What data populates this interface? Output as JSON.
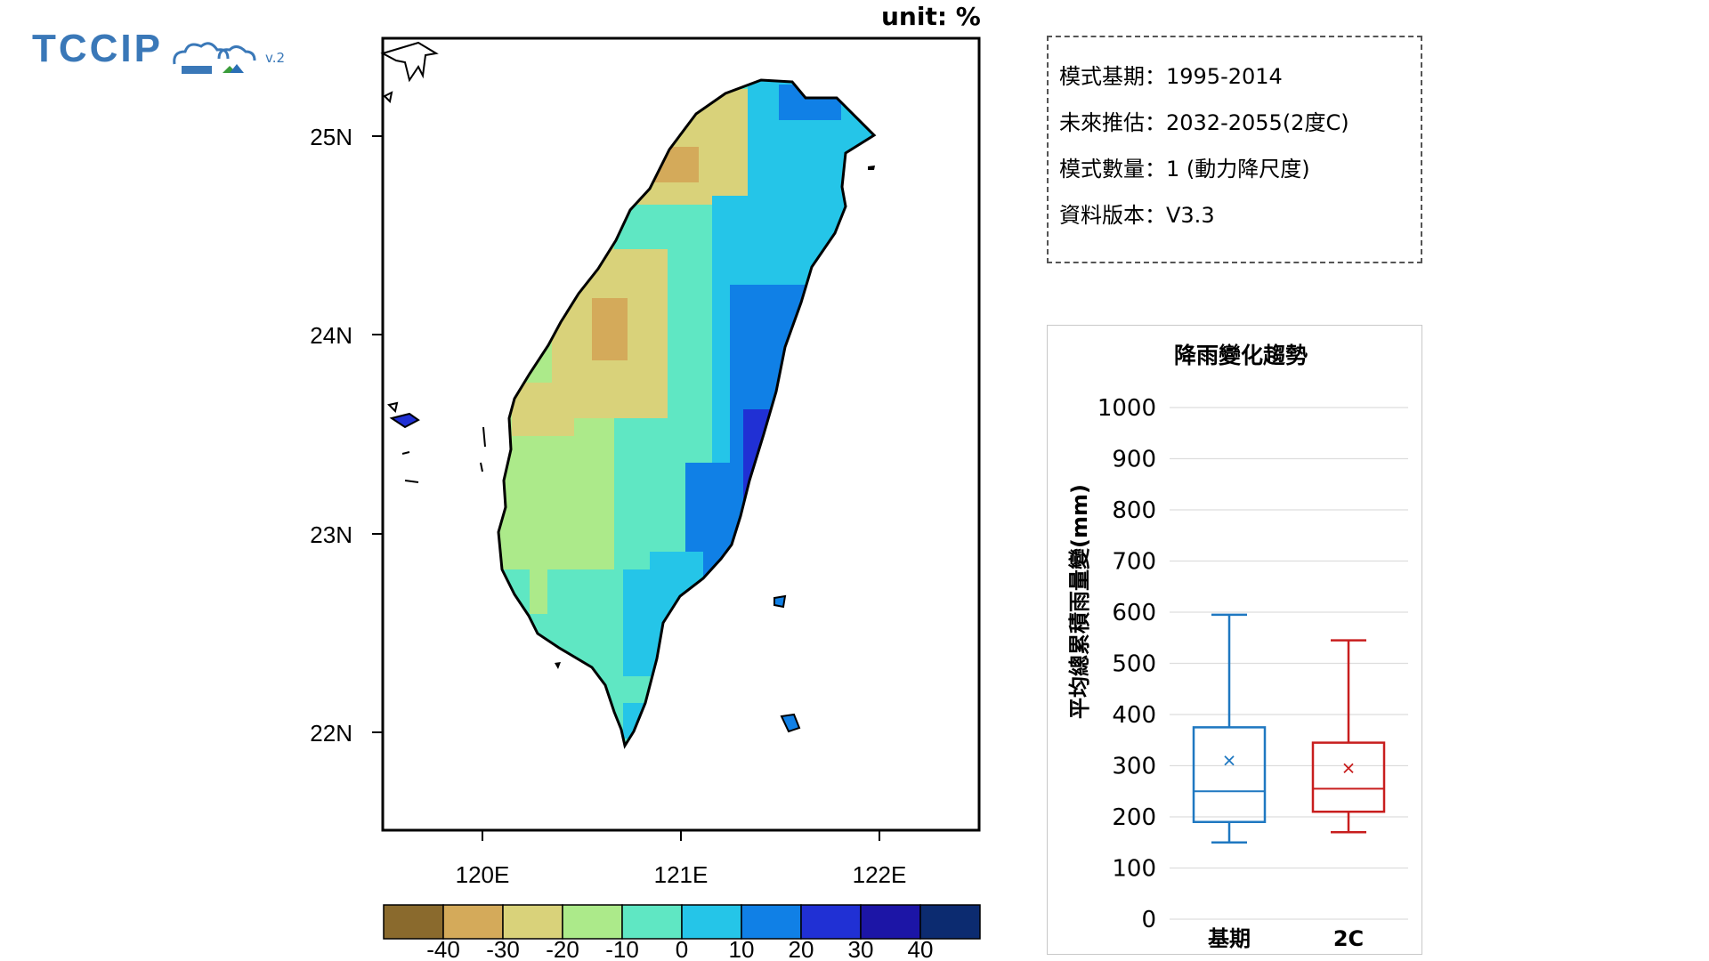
{
  "logo": {
    "text": "TCCIP",
    "version": "v.2"
  },
  "map": {
    "unit_label": "unit: %",
    "lat_labels": [
      "25N",
      "24N",
      "23N",
      "22N"
    ],
    "lon_labels": [
      "120E",
      "121E",
      "122E"
    ],
    "colorbar": {
      "colors": [
        "#8a6a2d",
        "#d4aa5a",
        "#d9d27a",
        "#acea8a",
        "#5fe7c3",
        "#25c5e8",
        "#1080e6",
        "#2030d4",
        "#1c15a6",
        "#0c2b70"
      ],
      "ticks": [
        "-40",
        "-30",
        "-20",
        "-10",
        "0",
        "10",
        "20",
        "30",
        "40"
      ]
    }
  },
  "info": {
    "lines": [
      "模式基期：1995-2014",
      "未來推估：2032-2055(2度C)",
      "模式數量：1 (動力降尺度)",
      "資料版本：V3.3"
    ]
  },
  "chart_data": {
    "type": "box",
    "title": "降雨變化趨勢",
    "ylabel": "平均總累積雨量變(mm)",
    "ylim": [
      0,
      1000
    ],
    "yticks": [
      0,
      100,
      200,
      300,
      400,
      500,
      600,
      700,
      800,
      900,
      1000
    ],
    "categories": [
      "基期",
      "2C"
    ],
    "series": [
      {
        "category": "基期",
        "min": 150,
        "q1": 190,
        "median": 250,
        "q3": 375,
        "max": 595,
        "mean": 310,
        "color": "#1f78c1"
      },
      {
        "category": "2C",
        "min": 170,
        "q1": 210,
        "median": 255,
        "q3": 345,
        "max": 545,
        "mean": 295,
        "color": "#c81e1e"
      }
    ]
  }
}
